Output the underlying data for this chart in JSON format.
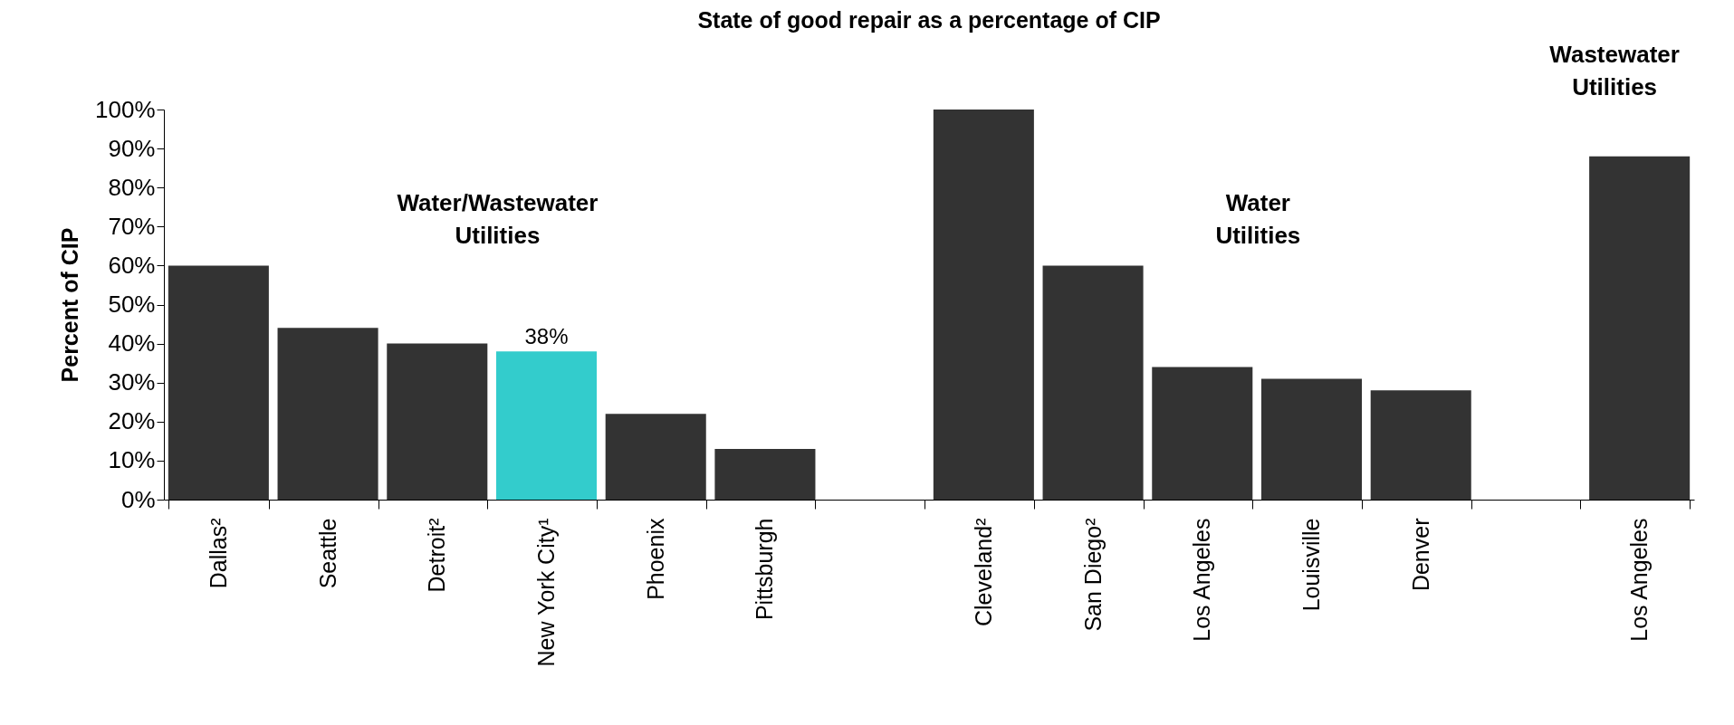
{
  "chart_data": {
    "type": "bar",
    "title": "State of good repair as a percentage of CIP",
    "ylabel": "Percent of CIP",
    "categories": [
      "Dallas²",
      "Seattle",
      "Detroit²",
      "New York City¹",
      "Phoenix",
      "Pittsburgh",
      null,
      "Cleveland²",
      "San Diego²",
      "Los Angeles",
      "Louisville",
      "Denver",
      null,
      "Los Angeles"
    ],
    "values": [
      60,
      44,
      40,
      38,
      22,
      13,
      null,
      100,
      60,
      34,
      31,
      28,
      null,
      88
    ],
    "colors": [
      "#333333",
      "#333333",
      "#333333",
      "#33cccc",
      "#333333",
      "#333333",
      "#333333",
      "#333333",
      "#333333",
      "#333333",
      "#333333",
      "#333333",
      "#333333",
      "#333333"
    ],
    "value_labels": [
      null,
      null,
      null,
      "38%",
      null,
      null,
      null,
      null,
      null,
      null,
      null,
      null,
      null,
      null
    ],
    "ylim": [
      0,
      100
    ],
    "yticks": [
      {
        "value": 0,
        "label": "0%"
      },
      {
        "value": 10,
        "label": "10%"
      },
      {
        "value": 20,
        "label": "20%"
      },
      {
        "value": 30,
        "label": "30%"
      },
      {
        "value": 40,
        "label": "40%"
      },
      {
        "value": 50,
        "label": "50%"
      },
      {
        "value": 60,
        "label": "60%"
      },
      {
        "value": 70,
        "label": "70%"
      },
      {
        "value": 80,
        "label": "80%"
      },
      {
        "value": 90,
        "label": "90%"
      },
      {
        "value": 100,
        "label": "100%"
      }
    ],
    "annotations": [
      "Water/Wastewater\nUtilities",
      "Water\nUtilities",
      "Wastewater\nUtilities"
    ],
    "grid": false
  }
}
